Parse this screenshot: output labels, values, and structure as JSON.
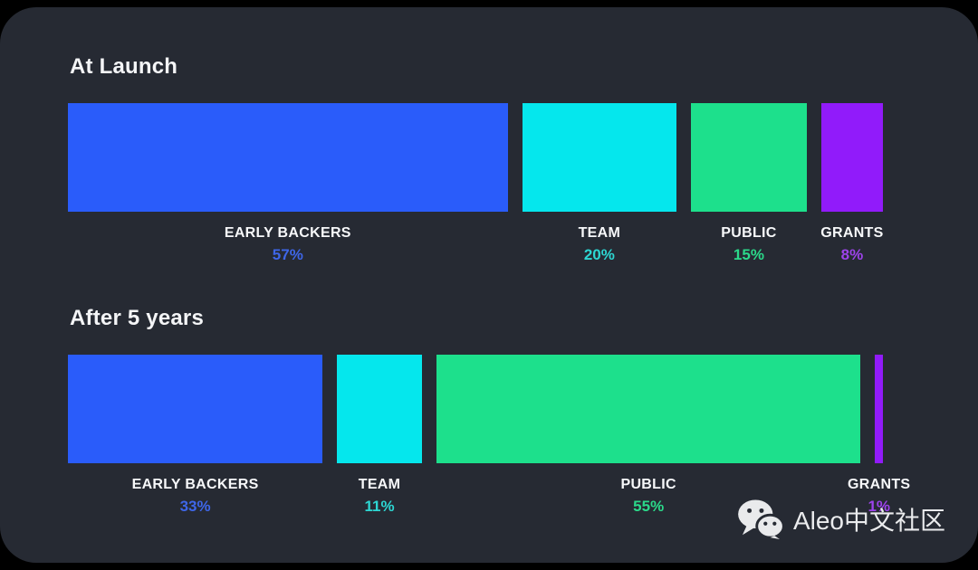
{
  "page": {
    "outer_background": "#000000",
    "card_background": "#262A33"
  },
  "chart_data": [
    {
      "type": "bar",
      "title": "At Launch",
      "orientation": "horizontal-proportional-segments",
      "categories": [
        "EARLY BACKERS",
        "TEAM",
        "PUBLIC",
        "GRANTS"
      ],
      "values": [
        57,
        20,
        15,
        8
      ],
      "unit": "%",
      "bar_colors": [
        "#2A5CFA",
        "#05E7ED",
        "#1DE08C",
        "#911BFA"
      ],
      "value_label_colors": [
        "#3E66E8",
        "#2DD6D2",
        "#2BD98A",
        "#9D43EB"
      ],
      "legend_position": "below-bars",
      "grid": false
    },
    {
      "type": "bar",
      "title": "After 5 years",
      "orientation": "horizontal-proportional-segments",
      "categories": [
        "EARLY BACKERS",
        "TEAM",
        "PUBLIC",
        "GRANTS"
      ],
      "values": [
        33,
        11,
        55,
        1
      ],
      "unit": "%",
      "bar_colors": [
        "#2A5CFA",
        "#05E7ED",
        "#1DE08C",
        "#911BFA"
      ],
      "value_label_colors": [
        "#3E66E8",
        "#2DD6D2",
        "#2BD98A",
        "#9D43EB"
      ],
      "legend_position": "below-bars",
      "grid": false
    }
  ],
  "watermark": {
    "icon": "wechat-icon",
    "text": "Aleo中文社区"
  }
}
